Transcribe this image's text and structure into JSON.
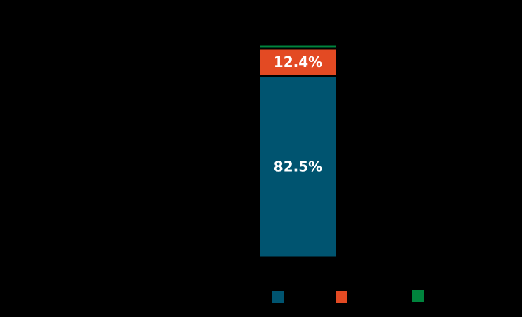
{
  "chart_data": {
    "type": "bar",
    "stacked": true,
    "categories": [
      null
    ],
    "series": [
      {
        "color": "#005470",
        "values": [
          82.5
        ],
        "value_labels": [
          "82.5%"
        ]
      },
      {
        "color": "#e34a23",
        "values": [
          12.4
        ],
        "value_labels": [
          "12.4%"
        ]
      },
      {
        "color": "#00843d",
        "values": [
          1.9
        ],
        "value_labels": [
          null
        ]
      }
    ],
    "ylim": [
      0,
      100
    ]
  }
}
